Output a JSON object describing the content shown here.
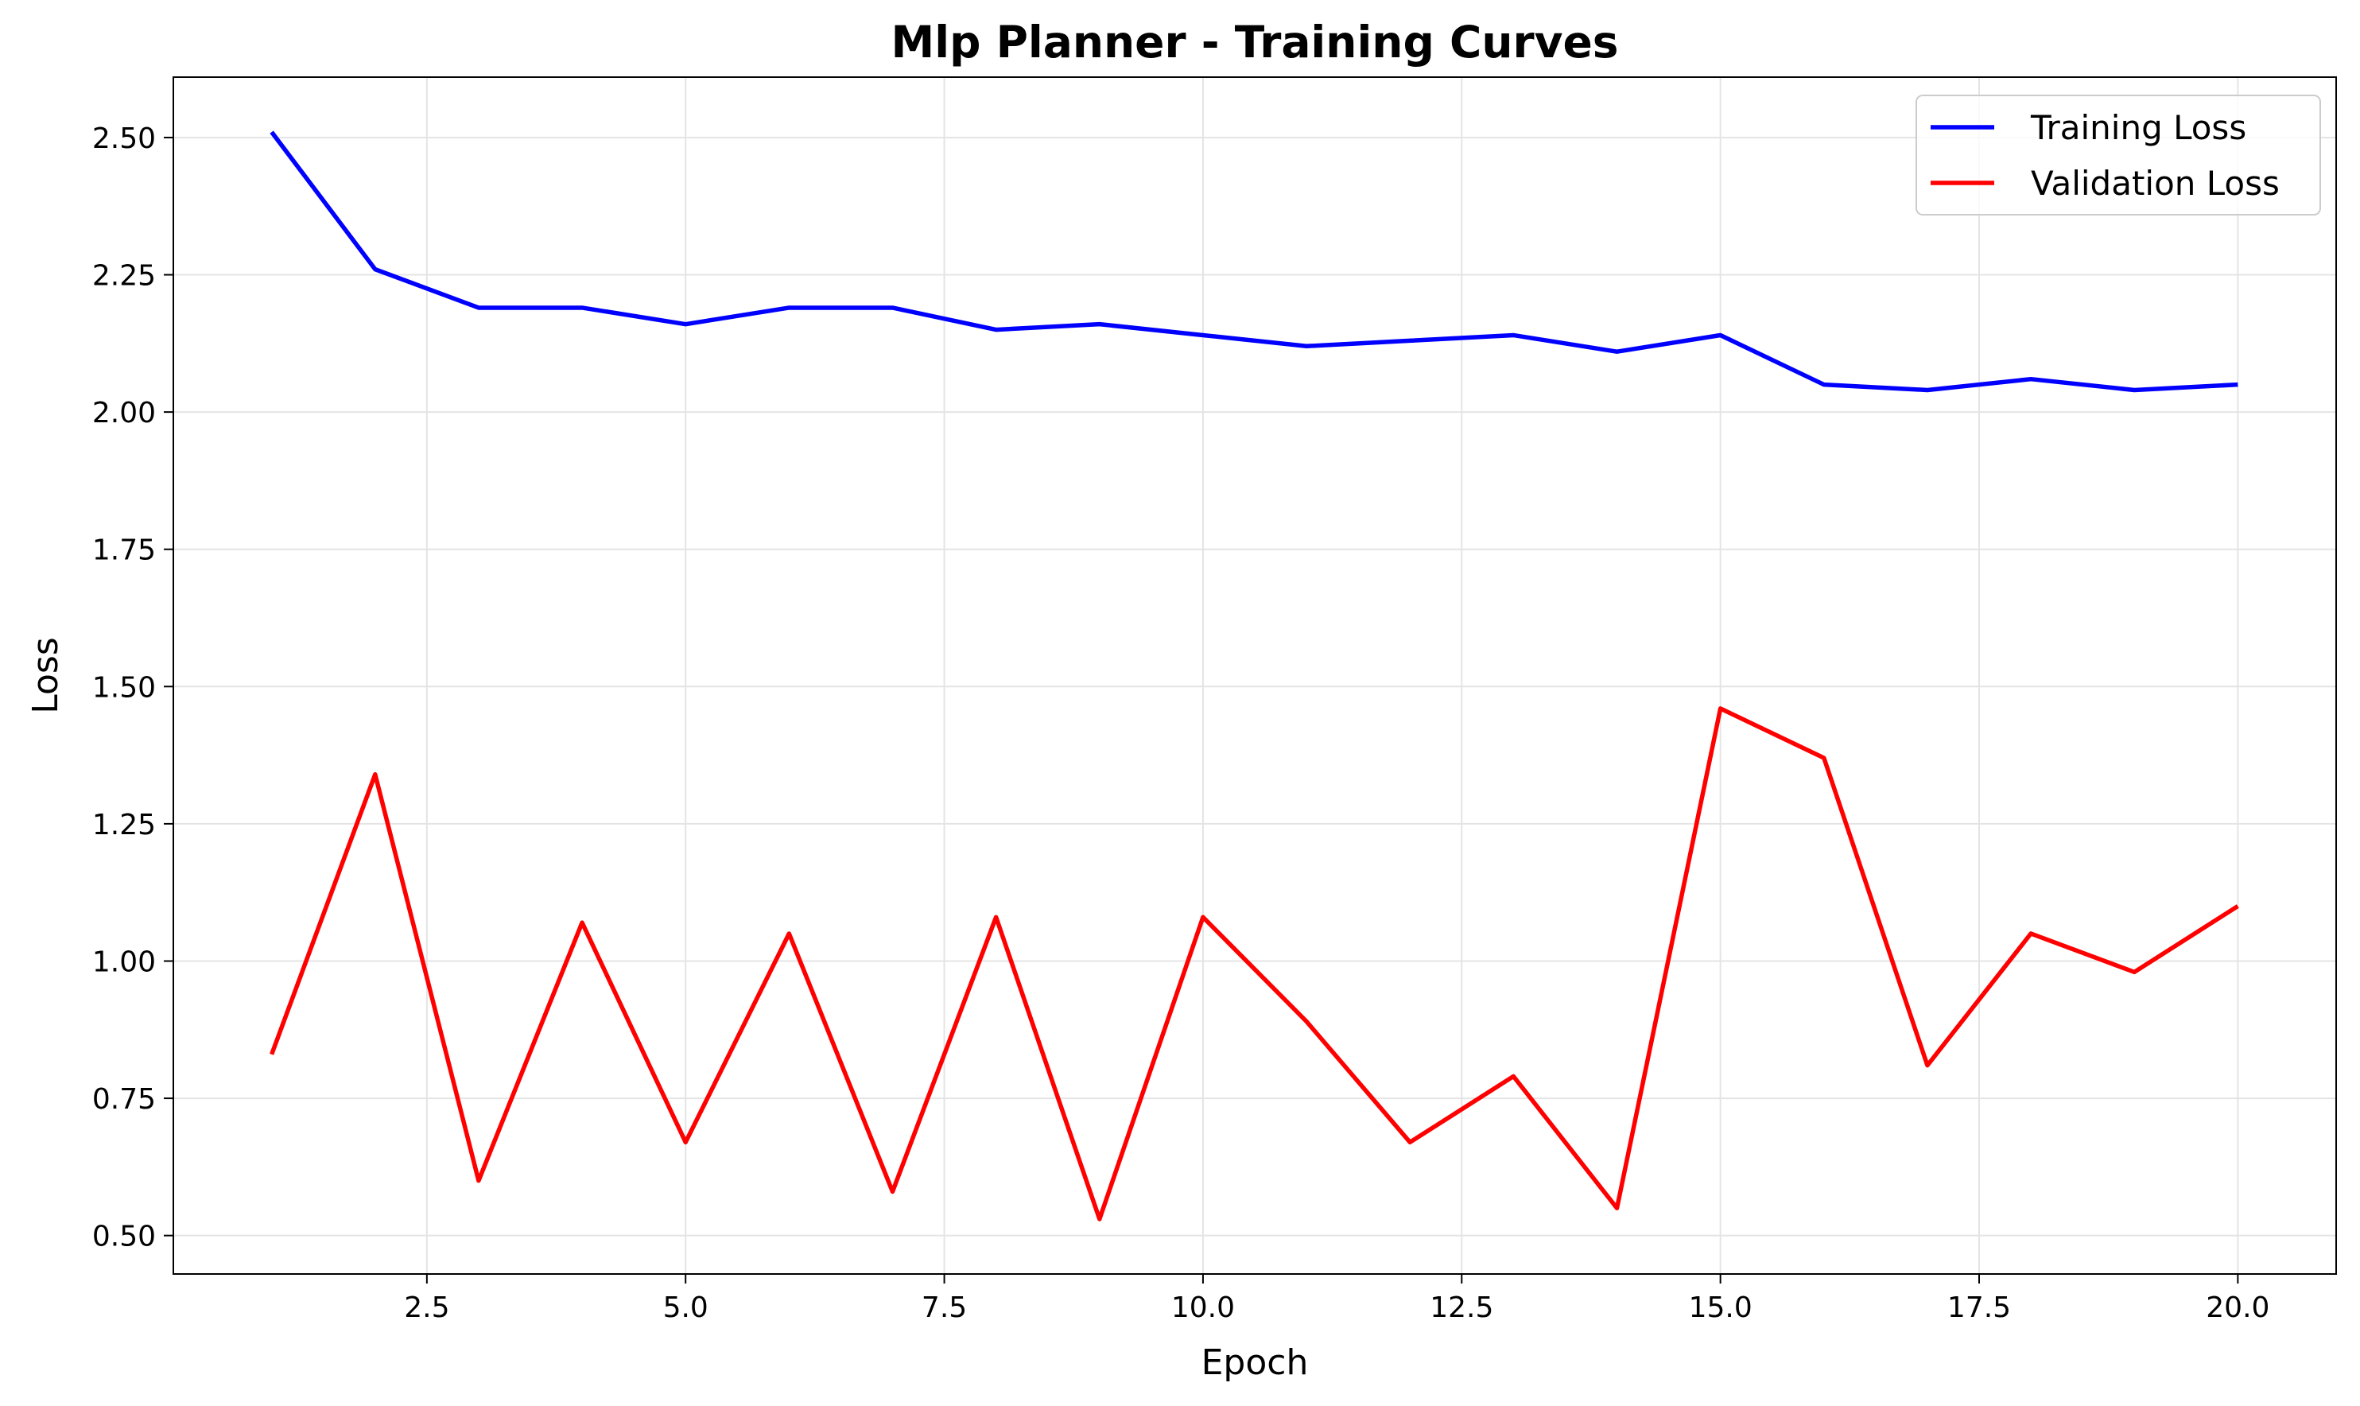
{
  "chart_data": {
    "type": "line",
    "title": "Mlp Planner - Training Curves",
    "xlabel": "Epoch",
    "ylabel": "Loss",
    "x": [
      1,
      2,
      3,
      4,
      5,
      6,
      7,
      8,
      9,
      10,
      11,
      12,
      13,
      14,
      15,
      16,
      17,
      18,
      19,
      20
    ],
    "series": [
      {
        "name": "Training Loss",
        "color": "#0000ff",
        "values": [
          2.51,
          2.26,
          2.19,
          2.19,
          2.16,
          2.19,
          2.19,
          2.15,
          2.16,
          2.14,
          2.12,
          2.13,
          2.14,
          2.11,
          2.14,
          2.05,
          2.04,
          2.06,
          2.04,
          2.05
        ]
      },
      {
        "name": "Validation Loss",
        "color": "#ff0000",
        "values": [
          0.83,
          1.34,
          0.6,
          1.07,
          0.67,
          1.05,
          0.58,
          1.08,
          0.53,
          1.08,
          0.89,
          0.67,
          0.79,
          0.55,
          1.46,
          1.37,
          0.81,
          1.05,
          0.98,
          1.1
        ]
      }
    ],
    "xlim": [
      0.05,
      20.95
    ],
    "ylim": [
      0.43,
      2.61
    ],
    "xticks": [
      2.5,
      5.0,
      7.5,
      10.0,
      12.5,
      15.0,
      17.5,
      20.0
    ],
    "xtick_labels": [
      "2.5",
      "5.0",
      "7.5",
      "10.0",
      "12.5",
      "15.0",
      "17.5",
      "20.0"
    ],
    "yticks": [
      0.5,
      0.75,
      1.0,
      1.25,
      1.5,
      1.75,
      2.0,
      2.25,
      2.5
    ],
    "ytick_labels": [
      "0.50",
      "0.75",
      "1.00",
      "1.25",
      "1.50",
      "1.75",
      "2.00",
      "2.25",
      "2.50"
    ],
    "grid": true,
    "legend_position": "top-right"
  }
}
